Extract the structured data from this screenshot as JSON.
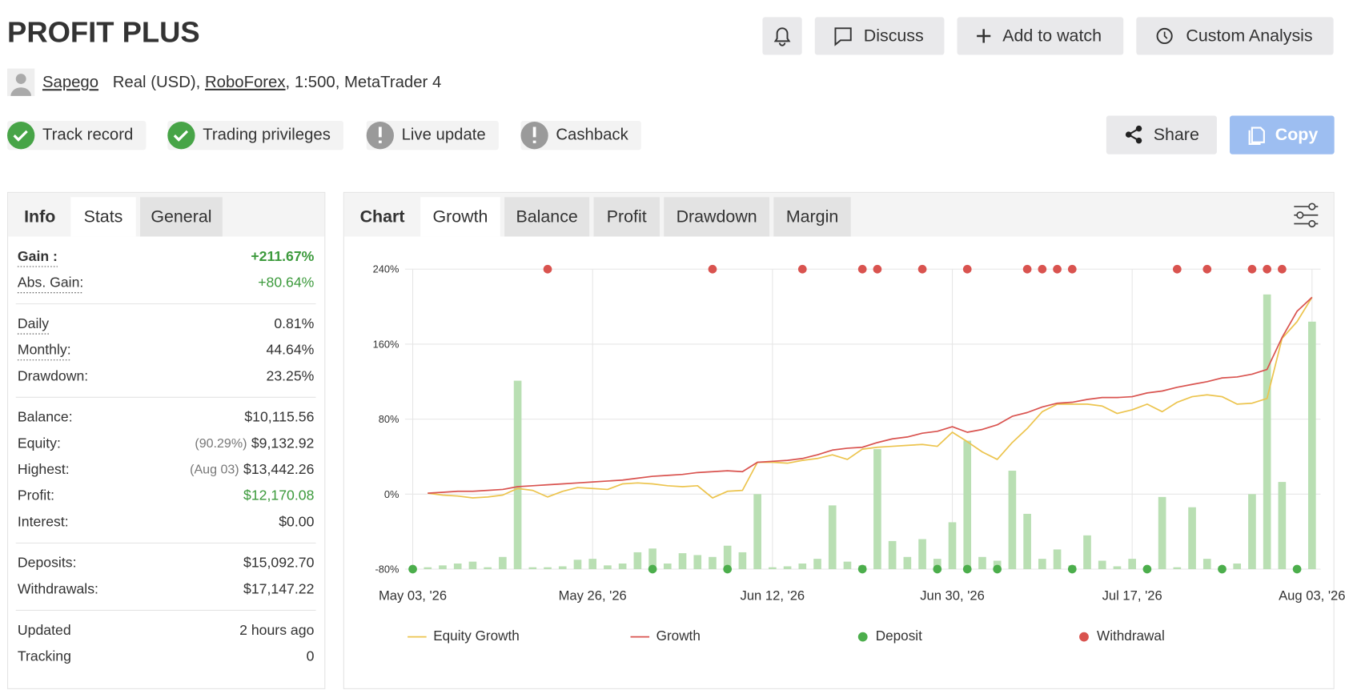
{
  "header": {
    "title": "PROFIT PLUS",
    "buttons": [
      "Discuss",
      "Add to watch",
      "Custom Analysis"
    ],
    "user": "Sapego",
    "account": [
      "Real (USD), ",
      "RoboForex",
      ", 1:500, MetaTrader 4"
    ],
    "badges": [
      {
        "label": "Track record",
        "status": "ok"
      },
      {
        "label": "Trading privileges",
        "status": "ok"
      },
      {
        "label": "Live update",
        "status": "warn"
      },
      {
        "label": "Cashback",
        "status": "warn"
      }
    ],
    "actions": [
      "Share",
      "Copy"
    ]
  },
  "stats": {
    "tabs": [
      "Info",
      "Stats",
      "General"
    ],
    "groups": [
      [
        {
          "label": "Gain :",
          "value": "+211.67%",
          "color": "#3c9a3c",
          "underline": true,
          "bold": true
        },
        {
          "label": "Abs. Gain:",
          "value": "+80.64%",
          "color": "#3c9a3c",
          "underline": true
        }
      ],
      [
        {
          "label": "Daily",
          "value": "0.81%",
          "underline": true
        },
        {
          "label": "Monthly:",
          "value": "44.64%",
          "underline": true
        },
        {
          "label": "Drawdown:",
          "value": "23.25%"
        }
      ],
      [
        {
          "label": "Balance:",
          "value": "$10,115.56"
        },
        {
          "label": "Equity:",
          "value": "$9,132.92",
          "note": "(90.29%)"
        },
        {
          "label": "Highest:",
          "value": "$13,442.26",
          "note": "(Aug 03)"
        },
        {
          "label": "Profit:",
          "value": "$12,170.08",
          "color": "#3c9a3c"
        },
        {
          "label": "Interest:",
          "value": "$0.00"
        }
      ],
      [
        {
          "label": "Deposits:",
          "value": "$15,092.70"
        },
        {
          "label": "Withdrawals:",
          "value": "$17,147.22"
        }
      ],
      [
        {
          "label": "Updated",
          "value": "2 hours ago"
        },
        {
          "label": "Tracking",
          "value": "0"
        }
      ]
    ]
  },
  "chart_tabs": [
    "Chart",
    "Growth",
    "Balance",
    "Profit",
    "Drawdown",
    "Margin"
  ],
  "chart_data": {
    "type": "line",
    "x": [
      0,
      1,
      2,
      3,
      4,
      5,
      6,
      7,
      8,
      9,
      10,
      11,
      12,
      13,
      14,
      15,
      16,
      17,
      18,
      19,
      20,
      21,
      22,
      23,
      24,
      25,
      26,
      27,
      28,
      29,
      30,
      31,
      32,
      33,
      34,
      35,
      36,
      37,
      38,
      39,
      40,
      41,
      42,
      43,
      44,
      45,
      46,
      47,
      48,
      49,
      50,
      51,
      52,
      53,
      54,
      55,
      56,
      57,
      58,
      59,
      60
    ],
    "xlim": [
      0,
      60
    ],
    "xticks": [
      {
        "value": 0,
        "label": "May 03, '26"
      },
      {
        "value": 12,
        "label": "May 26, '26"
      },
      {
        "value": 24,
        "label": "Jun 12, '26"
      },
      {
        "value": 36,
        "label": "Jun 30, '26"
      },
      {
        "value": 48,
        "label": "Jul 17, '26"
      },
      {
        "value": 60,
        "label": "Aug 03, '26"
      }
    ],
    "ylim": [
      -80,
      240
    ],
    "yticks": [
      {
        "value": -80,
        "label": "-80%"
      },
      {
        "value": 0,
        "label": "0%"
      },
      {
        "value": 80,
        "label": "80%"
      },
      {
        "value": 160,
        "label": "160%"
      },
      {
        "value": 240,
        "label": "240%"
      }
    ],
    "grid": true,
    "series": [
      {
        "type": "bar",
        "color": "#b9dfb3",
        "values": [
          -80,
          -78,
          -76,
          -74,
          -72,
          -78,
          -67,
          121,
          -78,
          -78,
          -77,
          -70,
          -69,
          -76,
          -74,
          -62,
          -58,
          -74,
          -63,
          -65,
          -67,
          -55,
          -62,
          0,
          -78,
          -77,
          -74,
          -69,
          -12,
          -72,
          -76,
          48,
          -50,
          -67,
          -48,
          -69,
          -30,
          57,
          -67,
          -71,
          25,
          -21,
          -69,
          -59,
          -76,
          -44,
          -71,
          -77,
          -69,
          -78,
          -3,
          -78,
          -14,
          -69,
          -77,
          -74,
          0,
          213,
          13,
          -78,
          184
        ]
      },
      {
        "name": "Equity Growth",
        "type": "line",
        "color": "#ecc44e",
        "values": [
          null,
          1,
          -1,
          -2,
          -4,
          -3,
          -1,
          6,
          4,
          -3,
          3,
          7,
          6,
          5,
          11,
          12,
          11,
          9,
          8,
          9,
          -4,
          3,
          4,
          34,
          34,
          33,
          36,
          38,
          42,
          37,
          48,
          50,
          51,
          52,
          53,
          51,
          66,
          56,
          45,
          37,
          55,
          70,
          88,
          96,
          96,
          96,
          94,
          86,
          90,
          96,
          88,
          98,
          104,
          106,
          104,
          96,
          97,
          102,
          166,
          184,
          210
        ]
      },
      {
        "name": "Growth",
        "type": "line",
        "color": "#d9534f",
        "values": [
          null,
          1,
          2,
          3,
          3,
          4,
          5,
          8,
          9,
          10,
          11,
          12,
          13,
          14,
          15,
          17,
          19,
          20,
          21,
          23,
          24,
          25,
          24,
          34,
          35,
          36,
          38,
          42,
          47,
          49,
          50,
          55,
          59,
          61,
          65,
          67,
          72,
          66,
          69,
          74,
          83,
          87,
          93,
          97,
          98,
          101,
          103,
          103,
          104,
          108,
          110,
          114,
          117,
          120,
          124,
          125,
          128,
          133,
          167,
          195,
          210
        ]
      },
      {
        "name": "Deposit",
        "type": "dots",
        "at": "bottom",
        "color": "#4cae4c",
        "x": [
          0,
          16,
          21,
          30,
          35,
          37,
          39,
          44,
          49,
          54,
          59
        ]
      },
      {
        "name": "Withdrawal",
        "type": "dots",
        "at": "top",
        "color": "#d9534f",
        "x": [
          9,
          20,
          26,
          30,
          31,
          34,
          37,
          41,
          42,
          43,
          44,
          51,
          53,
          56,
          57,
          58
        ]
      }
    ]
  }
}
